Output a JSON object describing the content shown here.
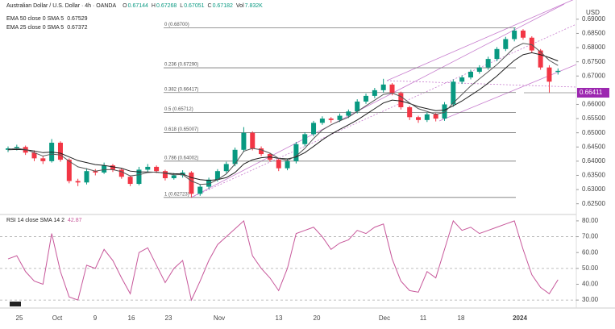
{
  "chart_data": [
    {
      "type": "candlestick",
      "title": "Australian Dollar / U.S. Dollar · 4h · OANDA",
      "ohlc_labels": [
        "O",
        "H",
        "L",
        "C"
      ],
      "volume_label": "Vol",
      "volume": {
        "value": 7832,
        "label": "7.832K"
      },
      "currency": "USD",
      "up_color": "#089981",
      "down_color": "#f23645",
      "candles": [
        [
          0.644,
          0.6452,
          0.6432,
          0.6445
        ],
        [
          0.6445,
          0.6458,
          0.6438,
          0.645
        ],
        [
          0.645,
          0.6455,
          0.6422,
          0.643
        ],
        [
          0.643,
          0.6438,
          0.64,
          0.641
        ],
        [
          0.641,
          0.6418,
          0.639,
          0.64
        ],
        [
          0.64,
          0.6478,
          0.6395,
          0.6465
        ],
        [
          0.6465,
          0.647,
          0.6398,
          0.6405
        ],
        [
          0.6405,
          0.641,
          0.6322,
          0.633
        ],
        [
          0.633,
          0.6338,
          0.6312,
          0.6325
        ],
        [
          0.6325,
          0.6375,
          0.6318,
          0.6365
        ],
        [
          0.6365,
          0.6372,
          0.635,
          0.636
        ],
        [
          0.636,
          0.6395,
          0.6355,
          0.6385
        ],
        [
          0.6385,
          0.639,
          0.6362,
          0.637
        ],
        [
          0.637,
          0.6375,
          0.6338,
          0.6345
        ],
        [
          0.6345,
          0.635,
          0.6312,
          0.632
        ],
        [
          0.632,
          0.638,
          0.6315,
          0.637
        ],
        [
          0.637,
          0.639,
          0.6362,
          0.638
        ],
        [
          0.638,
          0.6385,
          0.6358,
          0.6365
        ],
        [
          0.6365,
          0.637,
          0.6332,
          0.634
        ],
        [
          0.634,
          0.6358,
          0.6335,
          0.635
        ],
        [
          0.635,
          0.6368,
          0.6342,
          0.636
        ],
        [
          0.636,
          0.6365,
          0.62723,
          0.6285
        ],
        [
          0.6285,
          0.6318,
          0.6278,
          0.631
        ],
        [
          0.631,
          0.6342,
          0.6302,
          0.6335
        ],
        [
          0.6335,
          0.6372,
          0.6328,
          0.6365
        ],
        [
          0.6365,
          0.6398,
          0.6358,
          0.639
        ],
        [
          0.639,
          0.6448,
          0.6382,
          0.644
        ],
        [
          0.644,
          0.652,
          0.6432,
          0.65
        ],
        [
          0.65,
          0.6505,
          0.6438,
          0.6445
        ],
        [
          0.6445,
          0.6452,
          0.6418,
          0.6425
        ],
        [
          0.6425,
          0.643,
          0.6398,
          0.6405
        ],
        [
          0.6405,
          0.641,
          0.6365,
          0.6375
        ],
        [
          0.6375,
          0.6408,
          0.6368,
          0.64
        ],
        [
          0.64,
          0.6468,
          0.6392,
          0.646
        ],
        [
          0.646,
          0.6502,
          0.6452,
          0.6495
        ],
        [
          0.6495,
          0.6542,
          0.6488,
          0.6535
        ],
        [
          0.6535,
          0.6558,
          0.6528,
          0.655
        ],
        [
          0.655,
          0.6555,
          0.6535,
          0.6545
        ],
        [
          0.6545,
          0.6568,
          0.6538,
          0.656
        ],
        [
          0.656,
          0.6582,
          0.6552,
          0.6575
        ],
        [
          0.6575,
          0.6618,
          0.6568,
          0.661
        ],
        [
          0.661,
          0.6638,
          0.6602,
          0.663
        ],
        [
          0.663,
          0.6658,
          0.6622,
          0.665
        ],
        [
          0.665,
          0.669,
          0.6642,
          0.667
        ],
        [
          0.667,
          0.6675,
          0.6632,
          0.664
        ],
        [
          0.664,
          0.6645,
          0.6582,
          0.659
        ],
        [
          0.659,
          0.6595,
          0.6545,
          0.6555
        ],
        [
          0.6555,
          0.656,
          0.6535,
          0.6545
        ],
        [
          0.6545,
          0.6572,
          0.6538,
          0.6565
        ],
        [
          0.6565,
          0.657,
          0.654,
          0.655
        ],
        [
          0.655,
          0.6608,
          0.6542,
          0.66
        ],
        [
          0.66,
          0.6688,
          0.6592,
          0.668
        ],
        [
          0.668,
          0.6702,
          0.6672,
          0.6695
        ],
        [
          0.6695,
          0.6722,
          0.6688,
          0.6715
        ],
        [
          0.6715,
          0.6738,
          0.6708,
          0.673
        ],
        [
          0.673,
          0.6768,
          0.6722,
          0.676
        ],
        [
          0.676,
          0.6802,
          0.6752,
          0.6795
        ],
        [
          0.6795,
          0.6838,
          0.6788,
          0.683
        ],
        [
          0.683,
          0.687,
          0.6822,
          0.686
        ],
        [
          0.686,
          0.6865,
          0.6828,
          0.6835
        ],
        [
          0.6835,
          0.684,
          0.6782,
          0.679
        ],
        [
          0.679,
          0.6795,
          0.6722,
          0.673
        ],
        [
          0.673,
          0.6738,
          0.664,
          0.668
        ],
        [
          0.67144,
          0.67268,
          0.67051,
          0.67182
        ]
      ],
      "series": [
        {
          "name": "EMA 50 close 0 SMA 5",
          "color": "#1e1e1e",
          "values": [
            0.644,
            0.6441,
            0.644,
            0.6436,
            0.643,
            0.6432,
            0.6428,
            0.6415,
            0.6402,
            0.6395,
            0.6388,
            0.6385,
            0.638,
            0.6375,
            0.6365,
            0.6362,
            0.6362,
            0.6361,
            0.6358,
            0.6356,
            0.6355,
            0.6342,
            0.6335,
            0.6332,
            0.6335,
            0.6342,
            0.636,
            0.639,
            0.6405,
            0.6412,
            0.6415,
            0.641,
            0.6408,
            0.6415,
            0.643,
            0.6452,
            0.6475,
            0.6495,
            0.6512,
            0.6528,
            0.6545,
            0.6565,
            0.6585,
            0.6605,
            0.6615,
            0.6612,
            0.6603,
            0.6592,
            0.6585,
            0.6578,
            0.658,
            0.6595,
            0.6612,
            0.6632,
            0.6652,
            0.6675,
            0.67,
            0.6728,
            0.6755,
            0.6775,
            0.6782,
            0.6775,
            0.6765,
            0.67529
          ]
        },
        {
          "name": "EMA 25 close 0 SMA 5",
          "color": "#555555",
          "values": [
            0.6442,
            0.6445,
            0.6441,
            0.643,
            0.6418,
            0.6425,
            0.6422,
            0.64,
            0.638,
            0.6373,
            0.6365,
            0.637,
            0.637,
            0.6363,
            0.6348,
            0.6352,
            0.636,
            0.6362,
            0.6357,
            0.6352,
            0.6353,
            0.633,
            0.6318,
            0.632,
            0.6335,
            0.6355,
            0.639,
            0.6435,
            0.6445,
            0.644,
            0.6428,
            0.641,
            0.6403,
            0.6418,
            0.6445,
            0.648,
            0.651,
            0.6528,
            0.6542,
            0.6555,
            0.6575,
            0.6595,
            0.6615,
            0.6635,
            0.664,
            0.6628,
            0.6605,
            0.6585,
            0.6575,
            0.6565,
            0.6572,
            0.6605,
            0.6635,
            0.6665,
            0.669,
            0.6715,
            0.674,
            0.677,
            0.68,
            0.6815,
            0.681,
            0.6785,
            0.6755,
            0.67372
          ]
        }
      ],
      "fib_levels": [
        {
          "value": 0.687,
          "label": "0 (0.68700)"
        },
        {
          "value": 0.6729,
          "label": "0.236 (0.67290)"
        },
        {
          "value": 0.66417,
          "label": "0.382 (0.66417)"
        },
        {
          "value": 0.65712,
          "label": "0.5 (0.65712)"
        },
        {
          "value": 0.65007,
          "label": "0.618 (0.65007)"
        },
        {
          "value": 0.64002,
          "label": "0.786 (0.64002)"
        },
        {
          "value": 0.62723,
          "label": "1 (0.62723)"
        }
      ],
      "last_price": 0.66411,
      "last_price_color": "#9c27b0",
      "ylim": [
        0.6215,
        0.6945
      ],
      "yticks": [
        {
          "value": 0.69,
          "label": "0.69000"
        },
        {
          "value": 0.685,
          "label": "0.68500"
        },
        {
          "value": 0.68,
          "label": "0.68000"
        },
        {
          "value": 0.675,
          "label": "0.67500"
        },
        {
          "value": 0.67,
          "label": "0.67000"
        },
        {
          "value": 0.66,
          "label": "0.66000"
        },
        {
          "value": 0.655,
          "label": "0.65500"
        },
        {
          "value": 0.65,
          "label": "0.65000"
        },
        {
          "value": 0.645,
          "label": "0.64500"
        },
        {
          "value": 0.64,
          "label": "0.64000"
        },
        {
          "value": 0.635,
          "label": "0.63500"
        },
        {
          "value": 0.63,
          "label": "0.63000"
        },
        {
          "value": 0.625,
          "label": "0.62500"
        }
      ]
    },
    {
      "type": "line",
      "series": [
        {
          "name": "RSI 14 close SMA 14 2",
          "color": "#c7579a",
          "values": [
            56,
            58,
            48,
            42,
            40,
            72,
            48,
            32,
            30,
            52,
            50,
            62,
            55,
            44,
            34,
            60,
            63,
            52,
            41,
            50,
            55,
            30,
            42,
            55,
            65,
            70,
            75,
            80,
            58,
            50,
            44,
            36,
            50,
            72,
            74,
            76,
            70,
            62,
            66,
            68,
            74,
            72,
            76,
            78,
            56,
            42,
            36,
            35,
            48,
            44,
            62,
            80,
            74,
            76,
            72,
            74,
            76,
            78,
            80,
            62,
            46,
            38,
            34,
            42.87
          ]
        }
      ],
      "band_lines": [
        70,
        50,
        30
      ],
      "ylim": [
        26,
        83
      ],
      "yticks": [
        {
          "value": 80,
          "label": "80.00"
        },
        {
          "value": 70,
          "label": "70.00"
        },
        {
          "value": 60,
          "label": "60.00"
        },
        {
          "value": 50,
          "label": "50.00"
        },
        {
          "value": 40,
          "label": "40.00"
        },
        {
          "value": 30,
          "label": "30.00"
        }
      ],
      "x_labels": [
        "25",
        "Oct",
        "9",
        "16",
        "23",
        "Nov",
        "13",
        "20",
        "Dec",
        "11",
        "18",
        "2024"
      ]
    }
  ]
}
